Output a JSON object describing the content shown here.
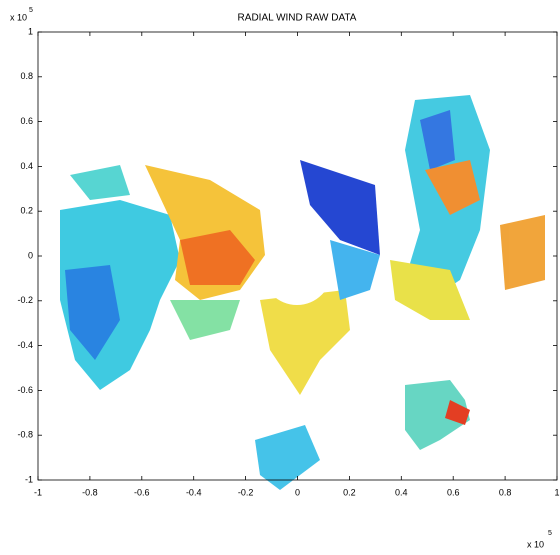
{
  "chart_data": {
    "type": "image",
    "title": "RADIAL WIND RAW DATA",
    "xlim": [
      -1,
      1
    ],
    "ylim": [
      -1,
      1
    ],
    "xticks": [
      -1,
      -0.8,
      -0.6,
      -0.4,
      -0.2,
      0,
      0.2,
      0.4,
      0.6,
      0.8,
      1
    ],
    "yticks": [
      -1,
      -0.8,
      -0.6,
      -0.4,
      -0.2,
      0,
      0.2,
      0.4,
      0.6,
      0.8,
      1
    ],
    "x_multiplier": {
      "base": "x 10",
      "exponent": "5"
    },
    "y_multiplier": {
      "base": "x 10",
      "exponent": "5"
    }
  }
}
